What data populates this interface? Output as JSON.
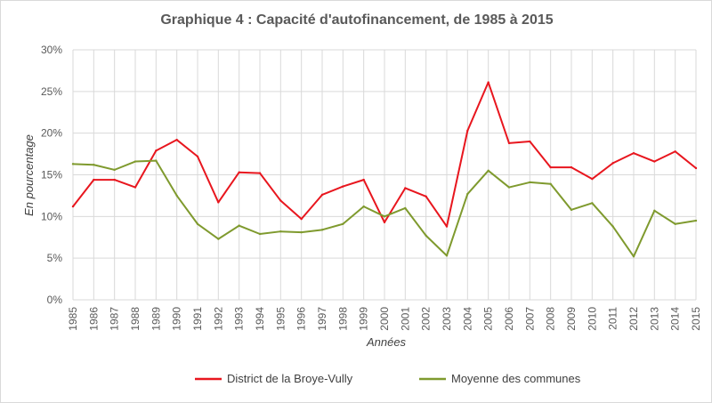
{
  "chart_data": {
    "type": "line",
    "title": "Graphique 4 : Capacité d'autofinancement, de 1985 à 2015",
    "xlabel": "Années",
    "ylabel": "En pourcentage",
    "ylim": [
      0,
      30
    ],
    "yticks": [
      "0%",
      "5%",
      "10%",
      "15%",
      "20%",
      "25%",
      "30%"
    ],
    "ytick_values": [
      0,
      5,
      10,
      15,
      20,
      25,
      30
    ],
    "grid": "both",
    "legend": "bottom",
    "x": [
      "1985",
      "1986",
      "1987",
      "1988",
      "1989",
      "1990",
      "1991",
      "1992",
      "1993",
      "1994",
      "1995",
      "1996",
      "1997",
      "1998",
      "1999",
      "2000",
      "2001",
      "2002",
      "2003",
      "2004",
      "2005",
      "2006",
      "2007",
      "2008",
      "2009",
      "2010",
      "2011",
      "2012",
      "2013",
      "2014",
      "2015"
    ],
    "series": [
      {
        "name": "District de la Broye-Vully",
        "color": "#e8161e",
        "values": [
          11.2,
          14.4,
          14.4,
          13.5,
          17.9,
          19.2,
          17.2,
          11.7,
          15.3,
          15.2,
          11.9,
          9.7,
          12.6,
          13.6,
          14.4,
          9.3,
          13.4,
          12.4,
          8.8,
          20.3,
          26.1,
          18.8,
          19.0,
          15.9,
          15.9,
          14.5,
          16.4,
          17.6,
          16.6,
          17.8,
          15.8
        ]
      },
      {
        "name": "Moyenne des communes",
        "color": "#7f9a2e",
        "values": [
          16.3,
          16.2,
          15.6,
          16.6,
          16.7,
          12.5,
          9.1,
          7.3,
          8.9,
          7.9,
          8.2,
          8.1,
          8.4,
          9.1,
          11.2,
          10.0,
          11.0,
          7.7,
          5.3,
          12.7,
          15.5,
          13.5,
          14.1,
          13.9,
          10.8,
          11.6,
          8.8,
          5.2,
          10.7,
          9.1,
          9.5
        ]
      }
    ]
  }
}
